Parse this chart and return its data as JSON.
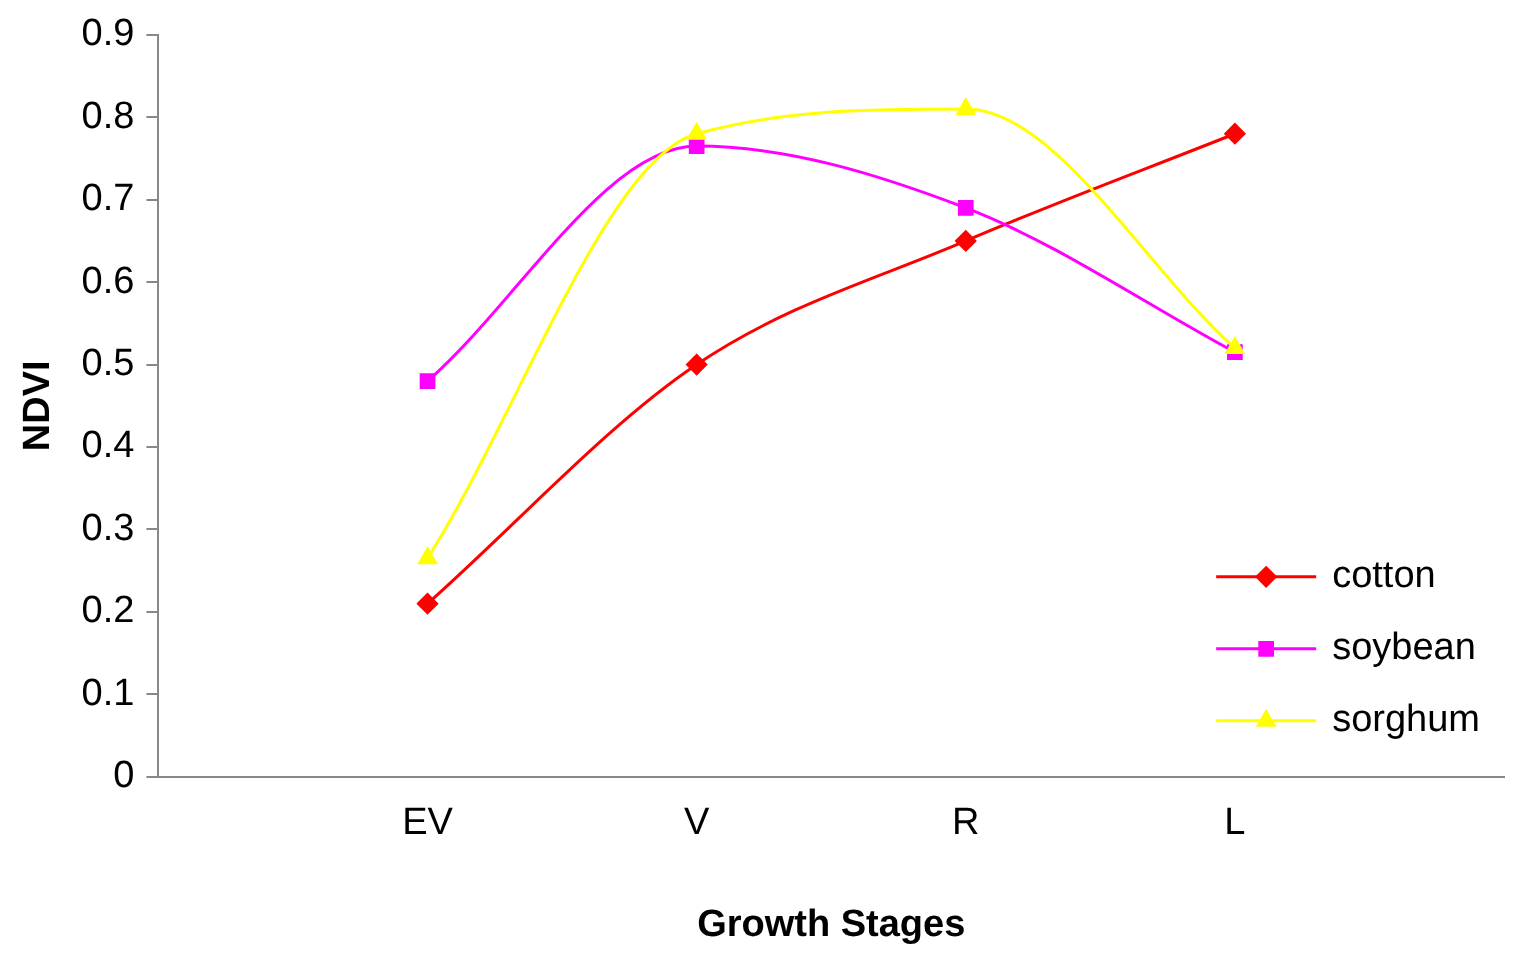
{
  "chart_data": {
    "type": "line",
    "xlabel": "Growth Stages",
    "ylabel": "NDVI",
    "categories": [
      null,
      "EV",
      "V",
      "R",
      "L",
      null
    ],
    "ylim": [
      0,
      0.9
    ],
    "yticks": [
      0,
      0.1,
      0.2,
      0.3,
      0.4,
      0.5,
      0.6,
      0.7,
      0.8,
      0.9
    ],
    "grid": false,
    "legend": "bottom right",
    "series": [
      {
        "name": "cotton",
        "color": "#ff0000",
        "marker": "diamond",
        "values": [
          null,
          0.21,
          0.5,
          0.65,
          0.78,
          null
        ]
      },
      {
        "name": "soybean",
        "color": "#ff00ff",
        "marker": "square",
        "values": [
          null,
          0.48,
          0.765,
          0.69,
          0.515,
          null
        ]
      },
      {
        "name": "sorghum",
        "color": "#ffff00",
        "marker": "triangle",
        "values": [
          null,
          0.265,
          0.78,
          0.81,
          0.52,
          null
        ]
      }
    ]
  }
}
